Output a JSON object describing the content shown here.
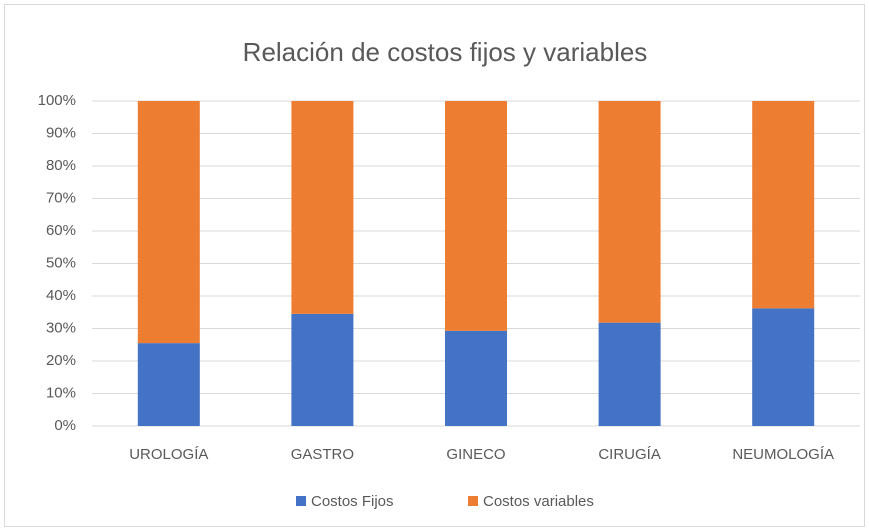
{
  "chart_data": {
    "type": "stacked_bar_100",
    "title": "Relación de costos fijos y variables",
    "categories": [
      "UROLOGÍA",
      "GASTRO",
      "GINECO",
      "CIRUGÍA",
      "NEUMOLOGÍA"
    ],
    "series": [
      {
        "name": "Costos Fijos",
        "color": "#4472c4",
        "values": [
          25.5,
          34.5,
          29.3,
          31.8,
          36.2
        ]
      },
      {
        "name": "Costos variables",
        "color": "#ed7d31",
        "values": [
          74.5,
          65.5,
          70.7,
          68.2,
          63.8
        ]
      }
    ],
    "ylim": [
      0,
      100
    ],
    "yticks": [
      {
        "value": 0,
        "label": "0%"
      },
      {
        "value": 10,
        "label": "10%"
      },
      {
        "value": 20,
        "label": "20%"
      },
      {
        "value": 30,
        "label": "30%"
      },
      {
        "value": 40,
        "label": "40%"
      },
      {
        "value": 50,
        "label": "50%"
      },
      {
        "value": 60,
        "label": "60%"
      },
      {
        "value": 70,
        "label": "70%"
      },
      {
        "value": 80,
        "label": "80%"
      },
      {
        "value": 90,
        "label": "90%"
      },
      {
        "value": 100,
        "label": "100%"
      }
    ],
    "grid": true,
    "legend": "bottom"
  }
}
